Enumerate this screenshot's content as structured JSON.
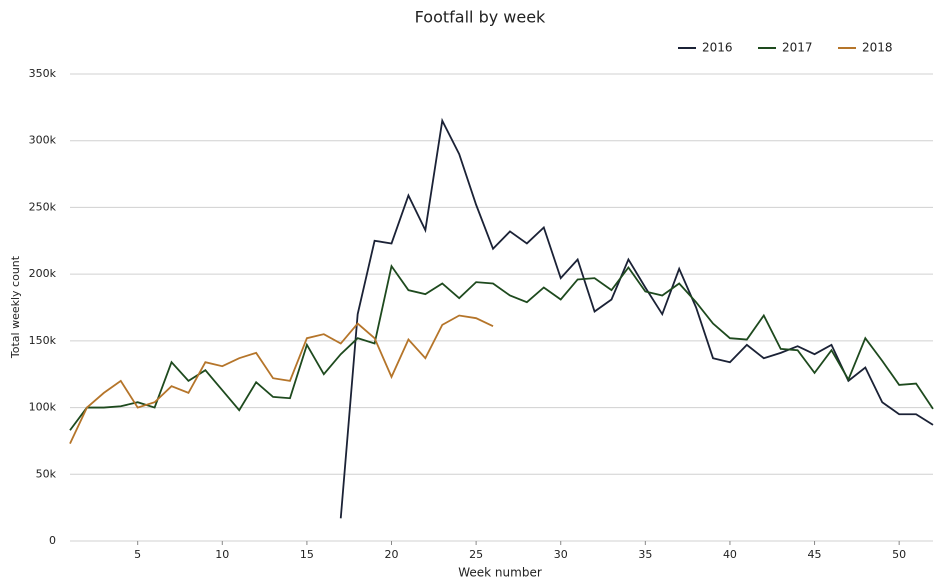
{
  "chart_data": {
    "type": "line",
    "title": "Footfall by week",
    "xlabel": "Week number",
    "ylabel": "Total weekly count",
    "x": [
      1,
      2,
      3,
      4,
      5,
      6,
      7,
      8,
      9,
      10,
      11,
      12,
      13,
      14,
      15,
      16,
      17,
      18,
      19,
      20,
      21,
      22,
      23,
      24,
      25,
      26,
      27,
      28,
      29,
      30,
      31,
      32,
      33,
      34,
      35,
      36,
      37,
      38,
      39,
      40,
      41,
      42,
      43,
      44,
      45,
      46,
      47,
      48,
      49,
      50,
      51,
      52
    ],
    "series": [
      {
        "name": "2016",
        "color": "#1b2236",
        "values": [
          null,
          null,
          null,
          null,
          null,
          null,
          null,
          null,
          null,
          null,
          null,
          null,
          null,
          null,
          null,
          null,
          17000,
          170000,
          225000,
          223000,
          259000,
          233000,
          315000,
          290000,
          252000,
          219000,
          232000,
          223000,
          235000,
          197000,
          211000,
          172000,
          181000,
          211000,
          190000,
          170000,
          204000,
          175000,
          137000,
          134000,
          147000,
          137000,
          141000,
          146000,
          140000,
          147000,
          120000,
          130000,
          104000,
          95000,
          95000,
          87000
        ]
      },
      {
        "name": "2017",
        "color": "#1e4a1e",
        "values": [
          83000,
          100000,
          100000,
          101000,
          104000,
          100000,
          134000,
          120000,
          128000,
          113000,
          98000,
          119000,
          108000,
          107000,
          147000,
          125000,
          140000,
          152000,
          148000,
          206000,
          188000,
          185000,
          193000,
          182000,
          194000,
          193000,
          184000,
          179000,
          190000,
          181000,
          196000,
          197000,
          188000,
          205000,
          187000,
          184000,
          193000,
          179000,
          163000,
          152000,
          151000,
          169000,
          144000,
          143000,
          126000,
          143000,
          121000,
          152000,
          135000,
          117000,
          118000,
          99000
        ]
      },
      {
        "name": "2018",
        "color": "#b5752a",
        "values": [
          73000,
          100000,
          111000,
          120000,
          100000,
          104000,
          116000,
          111000,
          134000,
          131000,
          137000,
          141000,
          122000,
          120000,
          152000,
          155000,
          148000,
          163000,
          152000,
          123000,
          151000,
          137000,
          162000,
          169000,
          167000,
          161000,
          null,
          null,
          null,
          null,
          null,
          null,
          null,
          null,
          null,
          null,
          null,
          null,
          null,
          null,
          null,
          null,
          null,
          null,
          null,
          null,
          null,
          null,
          null,
          null,
          null,
          null
        ]
      }
    ],
    "xlim": [
      1,
      52
    ],
    "xticks": [
      5,
      10,
      15,
      20,
      25,
      30,
      35,
      40,
      45,
      50
    ],
    "ylim": [
      0,
      350000
    ],
    "yticks": [
      0,
      {
        "value": 50000,
        "label": "50k"
      },
      {
        "value": 100000,
        "label": "100k"
      },
      {
        "value": 150000,
        "label": "150k"
      },
      {
        "value": 200000,
        "label": "200k"
      },
      {
        "value": 250000,
        "label": "250k"
      },
      {
        "value": 300000,
        "label": "300k"
      },
      {
        "value": 350000,
        "label": "350k"
      }
    ],
    "grid": true,
    "legend": "top-right"
  }
}
